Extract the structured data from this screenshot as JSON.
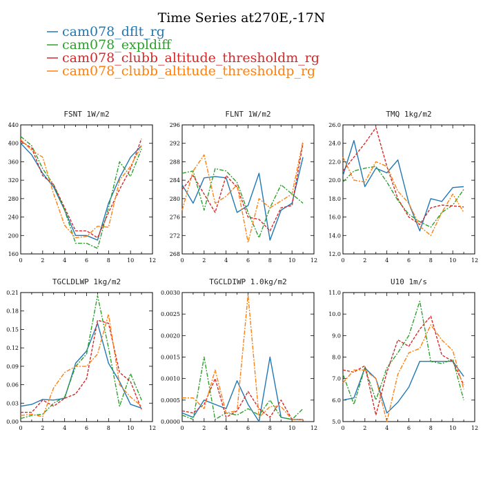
{
  "title": "Time Series at270E,-17N",
  "legend": [
    {
      "name": "cam078_dflt_rg",
      "color": "#1f77b4",
      "dash": ""
    },
    {
      "name": "cam078_expldiff",
      "color": "#2ca02c",
      "dash": "6,2,2,2"
    },
    {
      "name": "cam078_clubb_altitude_thresholdm_rg",
      "color": "#d62728",
      "dash": "4,2"
    },
    {
      "name": "cam078_clubb_altitude_thresholdp_rg",
      "color": "#ff7f0e",
      "dash": "6,2,2,2"
    }
  ],
  "chart_data": [
    {
      "type": "line",
      "title": "FSNT  1W/m2",
      "xlim": [
        0,
        12
      ],
      "xticks": [
        0,
        2,
        4,
        6,
        8,
        10,
        12
      ],
      "ylim": [
        160,
        440
      ],
      "yticks": [
        "160",
        "200",
        "240",
        "280",
        "320",
        "360",
        "400",
        "440"
      ],
      "x": [
        0,
        1,
        2,
        3,
        4,
        5,
        6,
        7,
        8,
        9,
        10,
        11
      ],
      "series": [
        {
          "name": "cam078_dflt_rg",
          "values": [
            400,
            375,
            335,
            305,
            255,
            200,
            200,
            190,
            270,
            325,
            370,
            395
          ]
        },
        {
          "name": "cam078_expldiff",
          "values": [
            415,
            395,
            345,
            310,
            255,
            183,
            183,
            172,
            260,
            360,
            328,
            388
          ]
        },
        {
          "name": "cam078_clubb_altitude_thresholdm_rg",
          "values": [
            405,
            390,
            330,
            310,
            260,
            210,
            210,
            195,
            250,
            300,
            345,
            410
          ]
        },
        {
          "name": "cam078_clubb_altitude_thresholdp_rg",
          "values": [
            408,
            385,
            370,
            290,
            222,
            195,
            198,
            220,
            218,
            320,
            350,
            395
          ]
        }
      ]
    },
    {
      "type": "line",
      "title": "FLNT  1W/m2",
      "xlim": [
        0,
        12
      ],
      "xticks": [
        0,
        2,
        4,
        6,
        8,
        10,
        12
      ],
      "ylim": [
        268,
        296
      ],
      "yticks": [
        "268",
        "272",
        "276",
        "280",
        "284",
        "288",
        "292",
        "296"
      ],
      "x": [
        0,
        1,
        2,
        3,
        4,
        5,
        6,
        7,
        8,
        9,
        10,
        11
      ],
      "series": [
        {
          "name": "cam078_dflt_rg",
          "values": [
            283.0,
            279.0,
            284.5,
            284.8,
            284.5,
            277.0,
            278.5,
            285.5,
            271.0,
            277.5,
            279.0,
            289.0
          ]
        },
        {
          "name": "cam078_expldiff",
          "values": [
            285.5,
            286.0,
            277.5,
            286.5,
            286.0,
            283.5,
            277.0,
            271.5,
            278.0,
            283.0,
            281.0,
            279.0
          ]
        },
        {
          "name": "cam078_clubb_altitude_thresholdm_rg",
          "values": [
            282.0,
            285.0,
            281.0,
            277.0,
            285.0,
            282.5,
            276.0,
            275.5,
            273.0,
            278.0,
            278.5,
            292.0
          ]
        },
        {
          "name": "cam078_clubb_altitude_thresholdp_rg",
          "values": [
            277.5,
            286.0,
            289.5,
            279.0,
            280.5,
            283.0,
            270.5,
            280.0,
            278.0,
            279.5,
            281.0,
            292.5
          ]
        }
      ]
    },
    {
      "type": "line",
      "title": "TMQ  1kg/m2",
      "xlim": [
        0,
        12
      ],
      "xticks": [
        0,
        2,
        4,
        6,
        8,
        10,
        12
      ],
      "ylim": [
        12,
        26
      ],
      "yticks": [
        "12.0",
        "14.0",
        "16.0",
        "18.0",
        "20.0",
        "22.0",
        "24.0",
        "26.0"
      ],
      "x": [
        0,
        1,
        2,
        3,
        4,
        5,
        6,
        7,
        8,
        9,
        10,
        11
      ],
      "series": [
        {
          "name": "cam078_dflt_rg",
          "values": [
            20.5,
            24.3,
            19.3,
            21.3,
            20.8,
            22.2,
            17.5,
            14.5,
            18.0,
            17.7,
            19.2,
            19.3
          ]
        },
        {
          "name": "cam078_expldiff",
          "values": [
            19.8,
            21.0,
            21.3,
            21.5,
            19.8,
            17.8,
            16.3,
            15.5,
            14.9,
            16.5,
            17.3,
            19.0
          ]
        },
        {
          "name": "cam078_clubb_altitude_thresholdm_rg",
          "values": [
            21.0,
            22.5,
            24.0,
            25.7,
            21.5,
            18.0,
            16.0,
            15.2,
            17.0,
            17.3,
            17.2,
            17.1
          ]
        },
        {
          "name": "cam078_clubb_altitude_thresholdp_rg",
          "values": [
            22.5,
            20.0,
            19.8,
            22.0,
            21.5,
            18.8,
            17.5,
            15.0,
            14.0,
            16.5,
            18.5,
            16.5
          ]
        }
      ]
    },
    {
      "type": "line",
      "title": "TGCLDLWP  1kg/m2",
      "xlim": [
        0,
        12
      ],
      "xticks": [
        0,
        2,
        4,
        6,
        8,
        10,
        12
      ],
      "ylim": [
        0,
        0.21
      ],
      "yticks": [
        "0.00",
        "0.03",
        "0.06",
        "0.09",
        "0.12",
        "0.15",
        "0.18",
        "0.21"
      ],
      "x": [
        0,
        1,
        2,
        3,
        4,
        5,
        6,
        7,
        8,
        9,
        10,
        11
      ],
      "series": [
        {
          "name": "cam078_dflt_rg",
          "values": [
            0.025,
            0.028,
            0.036,
            0.035,
            0.038,
            0.095,
            0.115,
            0.16,
            0.095,
            0.065,
            0.028,
            0.022
          ]
        },
        {
          "name": "cam078_expldiff",
          "values": [
            0.005,
            0.01,
            0.012,
            0.03,
            0.04,
            0.09,
            0.11,
            0.205,
            0.12,
            0.025,
            0.078,
            0.035
          ]
        },
        {
          "name": "cam078_clubb_altitude_thresholdm_rg",
          "values": [
            0.015,
            0.015,
            0.035,
            0.025,
            0.038,
            0.045,
            0.07,
            0.165,
            0.16,
            0.08,
            0.065,
            0.02
          ]
        },
        {
          "name": "cam078_clubb_altitude_thresholdp_rg",
          "values": [
            0.01,
            0.012,
            0.008,
            0.055,
            0.08,
            0.09,
            0.09,
            0.11,
            0.175,
            0.06,
            0.04,
            0.025
          ]
        }
      ]
    },
    {
      "type": "line",
      "title": "TGCLDIWP  1.0kg/m2",
      "xlim": [
        0,
        12
      ],
      "xticks": [
        0,
        2,
        4,
        6,
        8,
        10,
        12
      ],
      "ylim": [
        0,
        0.003
      ],
      "yticks": [
        "0.0000",
        "0.0005",
        "0.0010",
        "0.0015",
        "0.0020",
        "0.0025",
        "0.0030"
      ],
      "x": [
        0,
        1,
        2,
        3,
        4,
        5,
        6,
        7,
        8,
        9,
        10,
        11
      ],
      "series": [
        {
          "name": "cam078_dflt_rg",
          "values": [
            0.0002,
            0.0001,
            0.0005,
            0.0004,
            0.0003,
            0.00095,
            0.0004,
            0.0,
            0.0015,
            0.0001,
            5e-05,
            5e-05
          ]
        },
        {
          "name": "cam078_expldiff",
          "values": [
            0.00015,
            5e-05,
            0.0015,
            5e-05,
            0.0002,
            0.00015,
            0.0003,
            0.00015,
            0.0005,
            0.0001,
            5e-05,
            0.0003
          ]
        },
        {
          "name": "cam078_clubb_altitude_thresholdm_rg",
          "values": [
            0.00025,
            0.0002,
            0.0004,
            0.001,
            0.0001,
            0.00025,
            0.0007,
            0.0003,
            0.0001,
            0.0005,
            5e-05,
            5e-05
          ]
        },
        {
          "name": "cam078_clubb_altitude_thresholdp_rg",
          "values": [
            0.00055,
            0.00055,
            0.0003,
            0.0012,
            0.0002,
            0.00025,
            0.00295,
            0.0001,
            0.00035,
            0.00035,
            5e-05,
            5e-05
          ]
        }
      ]
    },
    {
      "type": "line",
      "title": "U10  1m/s",
      "xlim": [
        0,
        12
      ],
      "xticks": [
        0,
        2,
        4,
        6,
        8,
        10,
        12
      ],
      "ylim": [
        5,
        11
      ],
      "yticks": [
        "5.0",
        "6.0",
        "7.0",
        "8.0",
        "9.0",
        "10.0",
        "11.0"
      ],
      "x": [
        0,
        1,
        2,
        3,
        4,
        5,
        6,
        7,
        8,
        9,
        10,
        11
      ],
      "series": [
        {
          "name": "cam078_dflt_rg",
          "values": [
            6.0,
            6.1,
            7.5,
            7.0,
            5.4,
            5.9,
            6.6,
            7.8,
            7.8,
            7.8,
            7.8,
            7.1
          ]
        },
        {
          "name": "cam078_expldiff",
          "values": [
            7.2,
            5.8,
            7.5,
            6.0,
            7.5,
            8.2,
            9.0,
            10.6,
            7.8,
            7.7,
            7.9,
            6.0
          ]
        },
        {
          "name": "cam078_clubb_altitude_thresholdm_rg",
          "values": [
            7.4,
            7.3,
            7.6,
            5.3,
            7.3,
            8.8,
            8.5,
            9.3,
            9.9,
            8.1,
            7.8,
            6.7
          ]
        },
        {
          "name": "cam078_clubb_altitude_thresholdp_rg",
          "values": [
            6.8,
            7.4,
            7.4,
            7.0,
            5.0,
            7.2,
            8.2,
            8.4,
            9.5,
            8.8,
            8.3,
            6.5
          ]
        }
      ]
    }
  ]
}
